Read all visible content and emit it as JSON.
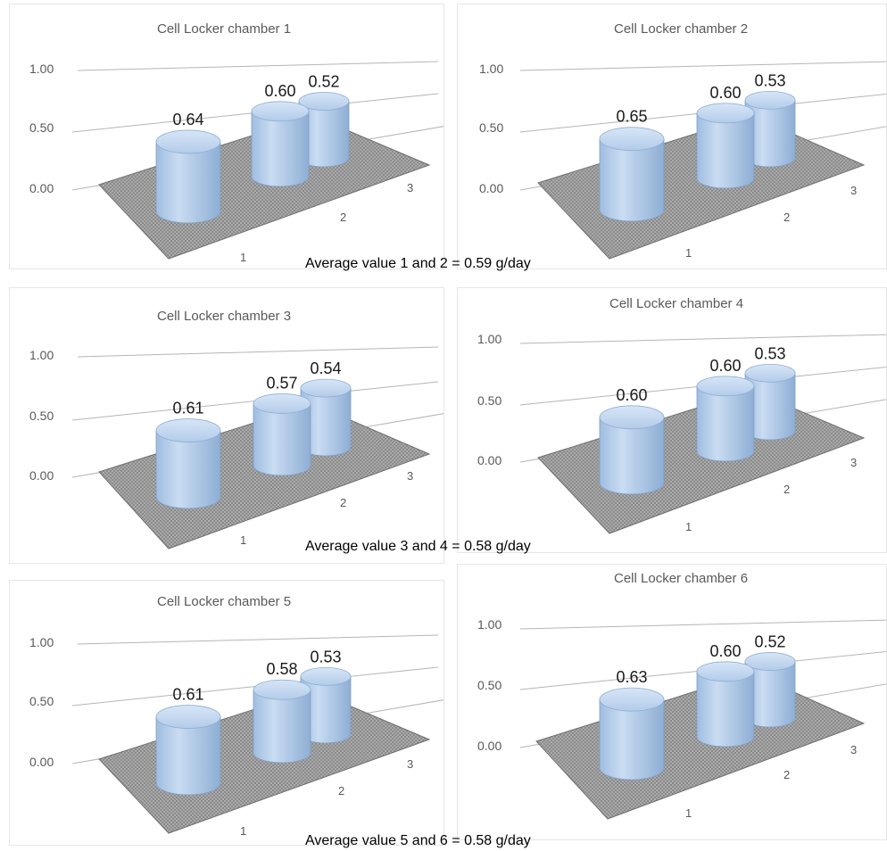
{
  "colors": {
    "cylinder": "#b7d1ee",
    "cylinder_dark": "#7f9fc6",
    "floor": "#9a9a9a",
    "grid": "#b5b5b5"
  },
  "chart_data": [
    {
      "type": "bar",
      "title": "Cell Locker chamber 1",
      "categories": [
        "1",
        "2",
        "3"
      ],
      "values": [
        0.64,
        0.6,
        0.52
      ],
      "y_ticks": [
        "0.00",
        "0.50",
        "1.00"
      ],
      "ylim": [
        0,
        1
      ],
      "labels": [
        "0.64",
        "0.60",
        "0.52"
      ]
    },
    {
      "type": "bar",
      "title": "Cell Locker chamber 2",
      "categories": [
        "1",
        "2",
        "3"
      ],
      "values": [
        0.65,
        0.6,
        0.53
      ],
      "y_ticks": [
        "0.00",
        "0.50",
        "1.00"
      ],
      "ylim": [
        0,
        1
      ],
      "labels": [
        "0.65",
        "0.60",
        "0.53"
      ]
    },
    {
      "type": "bar",
      "title": "Cell Locker chamber 3",
      "categories": [
        "1",
        "2",
        "3"
      ],
      "values": [
        0.61,
        0.57,
        0.54
      ],
      "y_ticks": [
        "0.00",
        "0.50",
        "1.00"
      ],
      "ylim": [
        0,
        1
      ],
      "labels": [
        "0.61",
        "0.57",
        "0.54"
      ]
    },
    {
      "type": "bar",
      "title": "Cell Locker chamber 4",
      "categories": [
        "1",
        "2",
        "3"
      ],
      "values": [
        0.6,
        0.6,
        0.53
      ],
      "y_ticks": [
        "0.00",
        "0.50",
        "1.00"
      ],
      "ylim": [
        0,
        1
      ],
      "labels": [
        "0.60",
        "0.60",
        "0.53"
      ]
    },
    {
      "type": "bar",
      "title": "Cell Locker chamber 5",
      "categories": [
        "1",
        "2",
        "3"
      ],
      "values": [
        0.61,
        0.58,
        0.53
      ],
      "y_ticks": [
        "0.00",
        "0.50",
        "1.00"
      ],
      "ylim": [
        0,
        1
      ],
      "labels": [
        "0.61",
        "0.58",
        "0.53"
      ]
    },
    {
      "type": "bar",
      "title": "Cell Locker chamber 6",
      "categories": [
        "1",
        "2",
        "3"
      ],
      "values": [
        0.63,
        0.6,
        0.52
      ],
      "y_ticks": [
        "0.00",
        "0.50",
        "1.00"
      ],
      "ylim": [
        0,
        1
      ],
      "labels": [
        "0.63",
        "0.60",
        "0.52"
      ]
    }
  ],
  "captions": [
    "Average value 1 and 2 = 0.59 g/day",
    "Average value 3 and 4 = 0.58 g/day",
    "Average value 5 and 6 = 0.58 g/day"
  ]
}
